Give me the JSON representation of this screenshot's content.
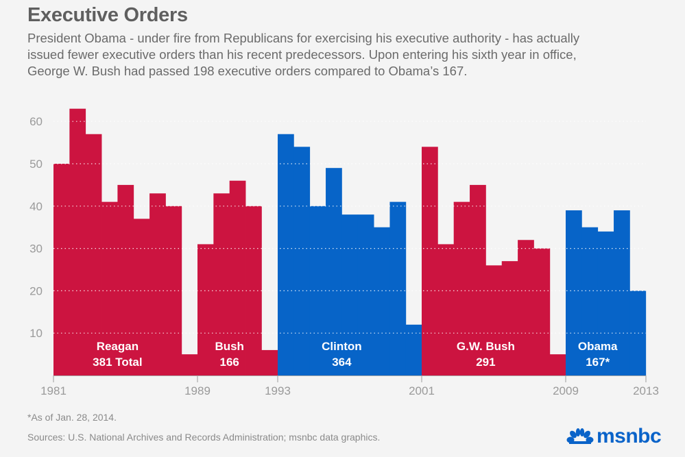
{
  "header": {
    "title": "Executive Orders",
    "subtitle_lines": [
      "President Obama - under fire from Republicans for exercising his executive authority -  has actually",
      "issued fewer executive orders than his recent predecessors. Upon entering his sixth year in office,",
      "George W. Bush had passed 198 executive orders compared to Obama’s 167."
    ]
  },
  "colors": {
    "republican": "#cc1440",
    "democrat": "#0764c8",
    "axis_text": "#9a9a9a",
    "background": "#f4f4f4"
  },
  "chart_data": {
    "type": "bar",
    "title": "Executive Orders",
    "xlabel": "",
    "ylabel": "",
    "ylim": [
      0,
      65
    ],
    "yticks": [
      10,
      20,
      30,
      40,
      50,
      60
    ],
    "grid": "dotted horizontal",
    "x_ticks": [
      "1981",
      "1989",
      "1993",
      "2001",
      "2009",
      "2013"
    ],
    "categories": [
      "1981",
      "1982",
      "1983",
      "1984",
      "1985",
      "1986",
      "1987",
      "1988",
      "1989 (Reagan)",
      "1989",
      "1990",
      "1991",
      "1992",
      "1993 (Bush)",
      "1993",
      "1994",
      "1995",
      "1996",
      "1997",
      "1998",
      "1999",
      "2000",
      "2001 (Clinton)",
      "2001",
      "2002",
      "2003",
      "2004",
      "2005",
      "2006",
      "2007",
      "2008",
      "2009 (G.W. Bush)",
      "2009",
      "2010",
      "2011",
      "2012",
      "2013"
    ],
    "series": [
      {
        "name": "Reagan",
        "party": "republican",
        "label": "Reagan",
        "total_label": "381 Total",
        "years": [
          "1981",
          "1982",
          "1983",
          "1984",
          "1985",
          "1986",
          "1987",
          "1988",
          "1989"
        ],
        "values": [
          50,
          63,
          57,
          41,
          45,
          37,
          43,
          40,
          5
        ]
      },
      {
        "name": "Bush",
        "party": "republican",
        "label": "Bush",
        "total_label": "166",
        "years": [
          "1989",
          "1990",
          "1991",
          "1992",
          "1993"
        ],
        "values": [
          31,
          43,
          46,
          40,
          6
        ]
      },
      {
        "name": "Clinton",
        "party": "democrat",
        "label": "Clinton",
        "total_label": "364",
        "years": [
          "1993",
          "1994",
          "1995",
          "1996",
          "1997",
          "1998",
          "1999",
          "2000",
          "2001"
        ],
        "values": [
          57,
          54,
          40,
          49,
          38,
          38,
          35,
          41,
          12
        ]
      },
      {
        "name": "G.W. Bush",
        "party": "republican",
        "label": "G.W. Bush",
        "total_label": "291",
        "years": [
          "2001",
          "2002",
          "2003",
          "2004",
          "2005",
          "2006",
          "2007",
          "2008",
          "2009"
        ],
        "values": [
          54,
          31,
          41,
          45,
          26,
          27,
          32,
          30,
          5
        ]
      },
      {
        "name": "Obama",
        "party": "democrat",
        "label": "Obama",
        "total_label": "167*",
        "years": [
          "2009",
          "2010",
          "2011",
          "2012",
          "2013"
        ],
        "values": [
          39,
          35,
          34,
          39,
          20
        ]
      }
    ]
  },
  "footer": {
    "footnote": "*As of Jan. 28, 2014.",
    "sources": "Sources: U.S. National Archives and Records Administration; msnbc data graphics.",
    "logo_text": "msnbc"
  }
}
